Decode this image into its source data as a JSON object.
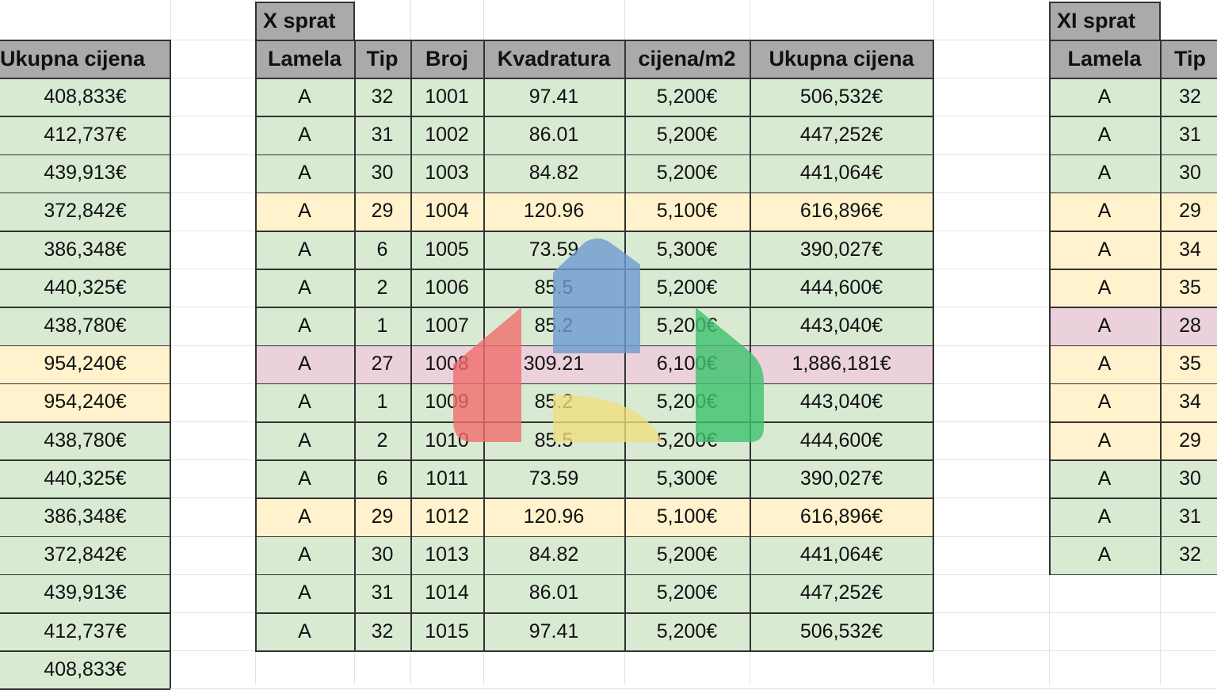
{
  "left_table": {
    "header": "Ukupna cijena",
    "rows": [
      {
        "value": "408,833€",
        "color": "#d9ead3"
      },
      {
        "value": "412,737€",
        "color": "#d9ead3"
      },
      {
        "value": "439,913€",
        "color": "#d9ead3"
      },
      {
        "value": "372,842€",
        "color": "#d9ead3"
      },
      {
        "value": "386,348€",
        "color": "#d9ead3"
      },
      {
        "value": "440,325€",
        "color": "#d9ead3"
      },
      {
        "value": "438,780€",
        "color": "#d9ead3"
      },
      {
        "value": "954,240€",
        "color": "#fff2cc"
      },
      {
        "value": "954,240€",
        "color": "#fff2cc"
      },
      {
        "value": "438,780€",
        "color": "#d9ead3"
      },
      {
        "value": "440,325€",
        "color": "#d9ead3"
      },
      {
        "value": "386,348€",
        "color": "#d9ead3"
      },
      {
        "value": "372,842€",
        "color": "#d9ead3"
      },
      {
        "value": "439,913€",
        "color": "#d9ead3"
      },
      {
        "value": "412,737€",
        "color": "#d9ead3"
      },
      {
        "value": "408,833€",
        "color": "#d9ead3"
      }
    ]
  },
  "x_sprat": {
    "title": "X sprat",
    "headers": [
      "Lamela",
      "Tip",
      "Broj",
      "Kvadratura",
      "cijena/m2",
      "Ukupna cijena"
    ],
    "rows": [
      {
        "color": "#d9ead3",
        "cells": [
          "A",
          "32",
          "1001",
          "97.41",
          "5,200€",
          "506,532€"
        ]
      },
      {
        "color": "#d9ead3",
        "cells": [
          "A",
          "31",
          "1002",
          "86.01",
          "5,200€",
          "447,252€"
        ]
      },
      {
        "color": "#d9ead3",
        "cells": [
          "A",
          "30",
          "1003",
          "84.82",
          "5,200€",
          "441,064€"
        ]
      },
      {
        "color": "#fff2cc",
        "cells": [
          "A",
          "29",
          "1004",
          "120.96",
          "5,100€",
          "616,896€"
        ]
      },
      {
        "color": "#d9ead3",
        "cells": [
          "A",
          "6",
          "1005",
          "73.59",
          "5,300€",
          "390,027€"
        ]
      },
      {
        "color": "#d9ead3",
        "cells": [
          "A",
          "2",
          "1006",
          "85.5",
          "5,200€",
          "444,600€"
        ]
      },
      {
        "color": "#d9ead3",
        "cells": [
          "A",
          "1",
          "1007",
          "85.2",
          "5,200€",
          "443,040€"
        ]
      },
      {
        "color": "#ead1dc",
        "cells": [
          "A",
          "27",
          "1008",
          "309.21",
          "6,100€",
          "1,886,181€"
        ]
      },
      {
        "color": "#d9ead3",
        "cells": [
          "A",
          "1",
          "1009",
          "85.2",
          "5,200€",
          "443,040€"
        ]
      },
      {
        "color": "#d9ead3",
        "cells": [
          "A",
          "2",
          "1010",
          "85.5",
          "5,200€",
          "444,600€"
        ]
      },
      {
        "color": "#d9ead3",
        "cells": [
          "A",
          "6",
          "1011",
          "73.59",
          "5,300€",
          "390,027€"
        ]
      },
      {
        "color": "#fff2cc",
        "cells": [
          "A",
          "29",
          "1012",
          "120.96",
          "5,100€",
          "616,896€"
        ]
      },
      {
        "color": "#d9ead3",
        "cells": [
          "A",
          "30",
          "1013",
          "84.82",
          "5,200€",
          "441,064€"
        ]
      },
      {
        "color": "#d9ead3",
        "cells": [
          "A",
          "31",
          "1014",
          "86.01",
          "5,200€",
          "447,252€"
        ]
      },
      {
        "color": "#d9ead3",
        "cells": [
          "A",
          "32",
          "1015",
          "97.41",
          "5,200€",
          "506,532€"
        ]
      }
    ]
  },
  "xi_sprat": {
    "title": "XI sprat",
    "headers": [
      "Lamela",
      "Tip"
    ],
    "rows": [
      {
        "color": "#d9ead3",
        "cells": [
          "A",
          "32"
        ]
      },
      {
        "color": "#d9ead3",
        "cells": [
          "A",
          "31"
        ]
      },
      {
        "color": "#d9ead3",
        "cells": [
          "A",
          "30"
        ]
      },
      {
        "color": "#fff2cc",
        "cells": [
          "A",
          "29"
        ]
      },
      {
        "color": "#fff2cc",
        "cells": [
          "A",
          "34"
        ]
      },
      {
        "color": "#fff2cc",
        "cells": [
          "A",
          "35"
        ]
      },
      {
        "color": "#ead1dc",
        "cells": [
          "A",
          "28"
        ]
      },
      {
        "color": "#fff2cc",
        "cells": [
          "A",
          "35"
        ]
      },
      {
        "color": "#fff2cc",
        "cells": [
          "A",
          "34"
        ]
      },
      {
        "color": "#fff2cc",
        "cells": [
          "A",
          "29"
        ]
      },
      {
        "color": "#d9ead3",
        "cells": [
          "A",
          "30"
        ]
      },
      {
        "color": "#d9ead3",
        "cells": [
          "A",
          "31"
        ]
      },
      {
        "color": "#d9ead3",
        "cells": [
          "A",
          "32"
        ]
      }
    ]
  },
  "colors": {
    "header_gray": "#aaaaaa",
    "green": "#d9ead3",
    "yellow": "#fff2cc",
    "pink": "#ead1dc",
    "logo_red": "#ef6b6b",
    "logo_blue": "#6f9bd0",
    "logo_yellow": "#f0de7c",
    "logo_green": "#3fc26f"
  },
  "watermark": {
    "icon": "house-logo-icon"
  }
}
